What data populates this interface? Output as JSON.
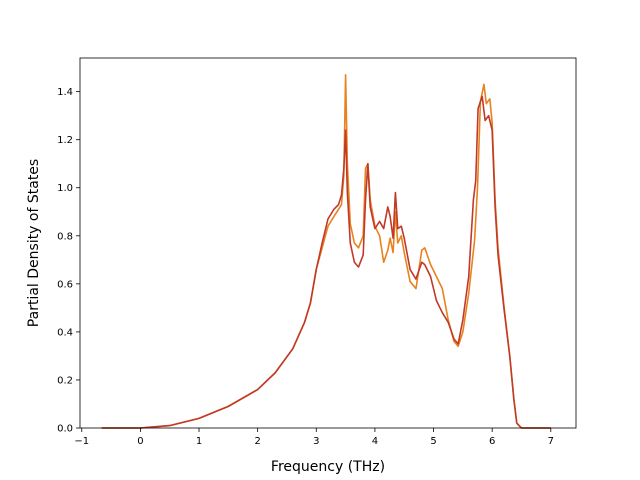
{
  "chart_data": {
    "type": "line",
    "title": "",
    "xlabel": "Frequency (THz)",
    "ylabel": "Partial Density of States",
    "xlim": [
      -1.03,
      7.43
    ],
    "ylim": [
      0.0,
      1.54
    ],
    "xticks": [
      -1,
      0,
      1,
      2,
      3,
      4,
      5,
      6,
      7
    ],
    "yticks": [
      0.0,
      0.2,
      0.4,
      0.6,
      0.8,
      1.0,
      1.2,
      1.4
    ],
    "xtick_labels": [
      "−1",
      "0",
      "1",
      "2",
      "3",
      "4",
      "5",
      "6",
      "7"
    ],
    "ytick_labels": [
      "0.0",
      "0.2",
      "0.4",
      "0.6",
      "0.8",
      "1.0",
      "1.2",
      "1.4"
    ],
    "grid": false,
    "legend": "none",
    "series": [
      {
        "color": "#e8821e",
        "points": [
          [
            -0.66,
            0.0
          ],
          [
            0.0,
            0.0
          ],
          [
            0.5,
            0.01
          ],
          [
            1.0,
            0.04
          ],
          [
            1.5,
            0.09
          ],
          [
            2.0,
            0.16
          ],
          [
            2.3,
            0.23
          ],
          [
            2.6,
            0.33
          ],
          [
            2.8,
            0.44
          ],
          [
            2.9,
            0.52
          ],
          [
            3.0,
            0.66
          ],
          [
            3.1,
            0.75
          ],
          [
            3.2,
            0.84
          ],
          [
            3.3,
            0.88
          ],
          [
            3.38,
            0.91
          ],
          [
            3.43,
            0.93
          ],
          [
            3.47,
            1.05
          ],
          [
            3.5,
            1.47
          ],
          [
            3.53,
            1.1
          ],
          [
            3.58,
            0.85
          ],
          [
            3.65,
            0.77
          ],
          [
            3.72,
            0.75
          ],
          [
            3.8,
            0.8
          ],
          [
            3.84,
            1.08
          ],
          [
            3.88,
            1.1
          ],
          [
            3.92,
            0.95
          ],
          [
            4.0,
            0.84
          ],
          [
            4.08,
            0.8
          ],
          [
            4.15,
            0.69
          ],
          [
            4.22,
            0.74
          ],
          [
            4.26,
            0.79
          ],
          [
            4.31,
            0.73
          ],
          [
            4.35,
            0.9
          ],
          [
            4.39,
            0.77
          ],
          [
            4.45,
            0.8
          ],
          [
            4.5,
            0.73
          ],
          [
            4.6,
            0.61
          ],
          [
            4.7,
            0.58
          ],
          [
            4.8,
            0.74
          ],
          [
            4.85,
            0.75
          ],
          [
            4.95,
            0.68
          ],
          [
            5.05,
            0.63
          ],
          [
            5.15,
            0.58
          ],
          [
            5.25,
            0.45
          ],
          [
            5.35,
            0.36
          ],
          [
            5.42,
            0.34
          ],
          [
            5.5,
            0.4
          ],
          [
            5.6,
            0.56
          ],
          [
            5.7,
            0.78
          ],
          [
            5.75,
            1.0
          ],
          [
            5.8,
            1.36
          ],
          [
            5.86,
            1.43
          ],
          [
            5.9,
            1.35
          ],
          [
            5.96,
            1.37
          ],
          [
            6.0,
            1.27
          ],
          [
            6.05,
            0.95
          ],
          [
            6.1,
            0.75
          ],
          [
            6.2,
            0.51
          ],
          [
            6.3,
            0.3
          ],
          [
            6.37,
            0.12
          ],
          [
            6.42,
            0.02
          ],
          [
            6.5,
            0.0
          ],
          [
            7.0,
            0.0
          ]
        ]
      },
      {
        "color": "#c03a28",
        "points": [
          [
            -0.66,
            0.0
          ],
          [
            0.0,
            0.0
          ],
          [
            0.5,
            0.01
          ],
          [
            1.0,
            0.04
          ],
          [
            1.5,
            0.09
          ],
          [
            2.0,
            0.16
          ],
          [
            2.3,
            0.23
          ],
          [
            2.6,
            0.33
          ],
          [
            2.8,
            0.44
          ],
          [
            2.9,
            0.52
          ],
          [
            3.0,
            0.66
          ],
          [
            3.1,
            0.77
          ],
          [
            3.2,
            0.87
          ],
          [
            3.3,
            0.91
          ],
          [
            3.38,
            0.93
          ],
          [
            3.43,
            0.97
          ],
          [
            3.47,
            1.08
          ],
          [
            3.5,
            1.24
          ],
          [
            3.53,
            0.98
          ],
          [
            3.58,
            0.77
          ],
          [
            3.65,
            0.69
          ],
          [
            3.72,
            0.67
          ],
          [
            3.8,
            0.72
          ],
          [
            3.84,
            0.95
          ],
          [
            3.88,
            1.1
          ],
          [
            3.92,
            0.92
          ],
          [
            4.0,
            0.83
          ],
          [
            4.08,
            0.86
          ],
          [
            4.15,
            0.83
          ],
          [
            4.22,
            0.92
          ],
          [
            4.26,
            0.88
          ],
          [
            4.31,
            0.79
          ],
          [
            4.35,
            0.98
          ],
          [
            4.39,
            0.83
          ],
          [
            4.45,
            0.84
          ],
          [
            4.5,
            0.79
          ],
          [
            4.6,
            0.66
          ],
          [
            4.7,
            0.62
          ],
          [
            4.8,
            0.69
          ],
          [
            4.85,
            0.68
          ],
          [
            4.95,
            0.63
          ],
          [
            5.05,
            0.53
          ],
          [
            5.15,
            0.48
          ],
          [
            5.25,
            0.44
          ],
          [
            5.35,
            0.37
          ],
          [
            5.42,
            0.35
          ],
          [
            5.5,
            0.45
          ],
          [
            5.6,
            0.63
          ],
          [
            5.68,
            0.95
          ],
          [
            5.72,
            1.03
          ],
          [
            5.76,
            1.33
          ],
          [
            5.83,
            1.38
          ],
          [
            5.88,
            1.28
          ],
          [
            5.94,
            1.3
          ],
          [
            6.0,
            1.24
          ],
          [
            6.05,
            0.92
          ],
          [
            6.1,
            0.72
          ],
          [
            6.2,
            0.5
          ],
          [
            6.3,
            0.3
          ],
          [
            6.37,
            0.12
          ],
          [
            6.42,
            0.02
          ],
          [
            6.5,
            0.0
          ],
          [
            7.0,
            0.0
          ]
        ]
      }
    ]
  }
}
